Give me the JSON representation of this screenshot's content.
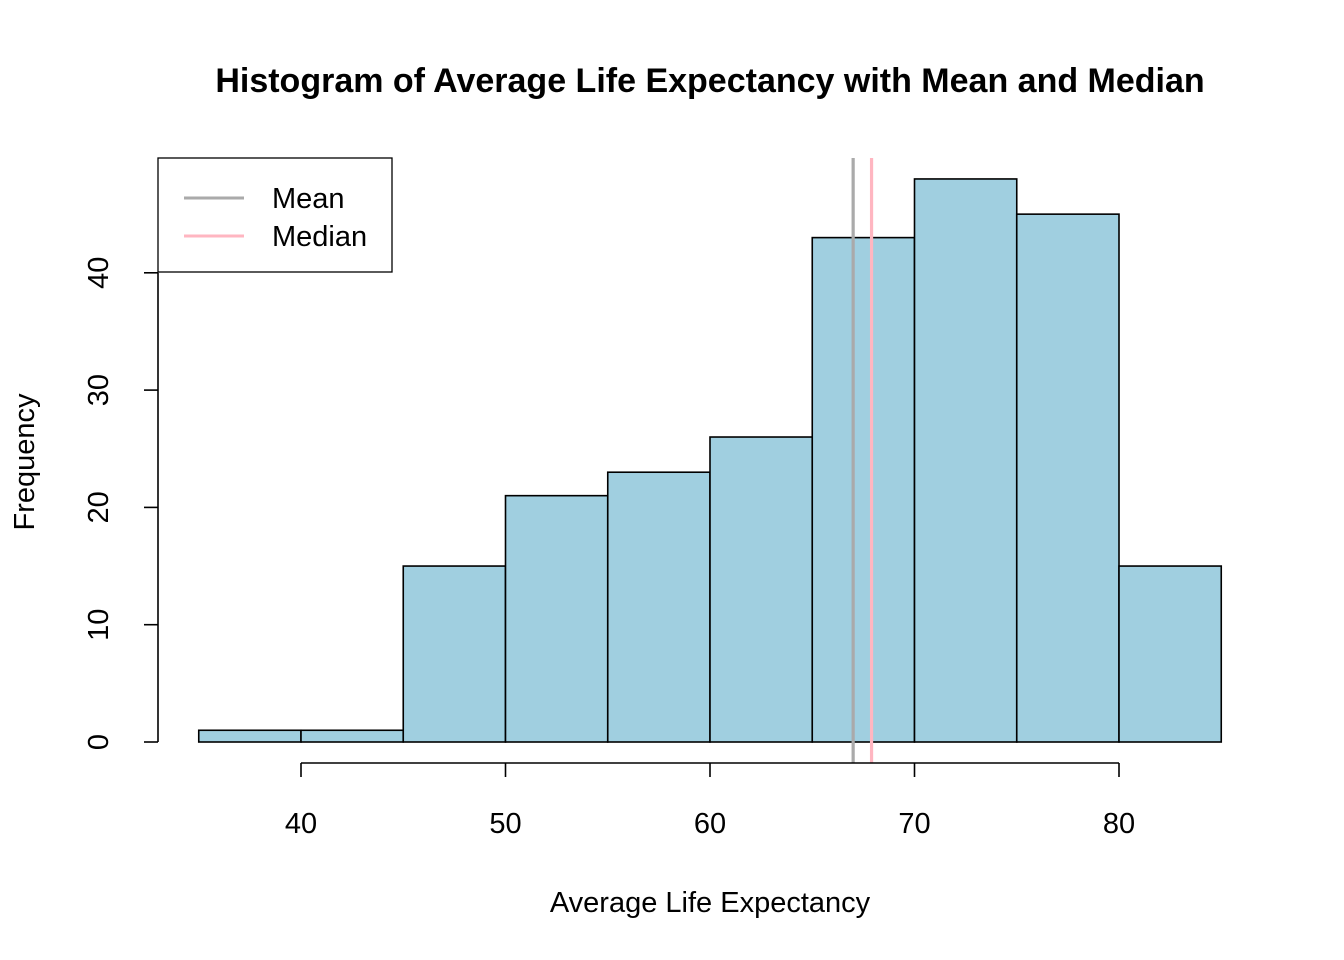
{
  "chart_data": {
    "type": "bar",
    "title": "Histogram of Average Life Expectancy with Mean and Median",
    "xlabel": "Average Life Expectancy",
    "ylabel": "Frequency",
    "bins": [
      {
        "start": 35,
        "end": 40,
        "count": 1
      },
      {
        "start": 40,
        "end": 45,
        "count": 1
      },
      {
        "start": 45,
        "end": 50,
        "count": 15
      },
      {
        "start": 50,
        "end": 55,
        "count": 21
      },
      {
        "start": 55,
        "end": 60,
        "count": 23
      },
      {
        "start": 60,
        "end": 65,
        "count": 26
      },
      {
        "start": 65,
        "end": 70,
        "count": 43
      },
      {
        "start": 70,
        "end": 75,
        "count": 48
      },
      {
        "start": 75,
        "end": 80,
        "count": 45
      },
      {
        "start": 80,
        "end": 85,
        "count": 15
      }
    ],
    "x_ticks": [
      40,
      50,
      60,
      70,
      80
    ],
    "y_ticks": [
      0,
      10,
      20,
      30,
      40
    ],
    "xlim": [
      35,
      85
    ],
    "ylim": [
      0,
      48
    ],
    "bar_color": "#A0CFE0",
    "bar_edge_color": "#000000",
    "reference_lines": [
      {
        "name": "Mean",
        "value": 67.0,
        "color": "#AAAAAA"
      },
      {
        "name": "Median",
        "value": 67.9,
        "color": "#FFB6C1"
      }
    ],
    "legend": {
      "placement": "top-left",
      "entries": [
        {
          "label": "Mean",
          "color": "#AAAAAA"
        },
        {
          "label": "Median",
          "color": "#FFB6C1"
        }
      ]
    }
  }
}
